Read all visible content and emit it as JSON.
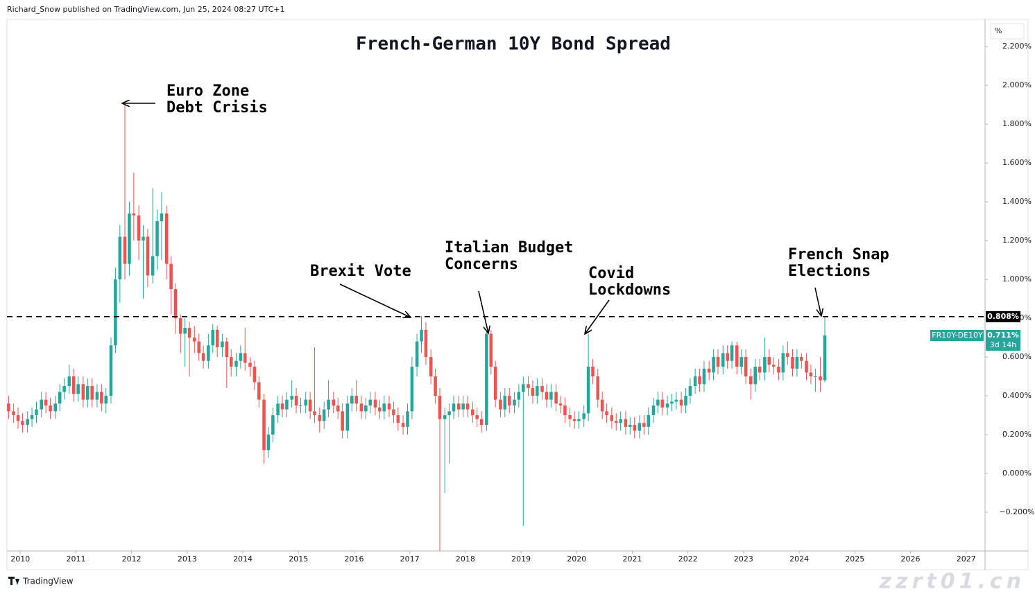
{
  "chart_data": {
    "type": "candlestick",
    "header": "Richard_Snow published on TradingView.com, Jun 25, 2024 08:27 UTC+1",
    "title": "French-German 10Y Bond Spread",
    "footer": "TradingView",
    "watermark": "zzrt01.cn",
    "unit": "%",
    "symbol": "FR10Y-DE10Y",
    "countdown": "3d 14h",
    "up_color": "#26a69a",
    "down_color": "#ef5350",
    "grid": false,
    "xlim": [
      2009.76,
      2027.34
    ],
    "xticks": [
      2010,
      2011,
      2012,
      2013,
      2014,
      2015,
      2016,
      2017,
      2018,
      2019,
      2020,
      2021,
      2022,
      2023,
      2024,
      2025,
      2026,
      2027
    ],
    "ylim": [
      -0.4,
      2.34
    ],
    "yticks": [
      {
        "value": -0.2,
        "label": "−0.200%"
      },
      {
        "value": 0,
        "label": "0.000%"
      },
      {
        "value": 0.2,
        "label": "0.200%"
      },
      {
        "value": 0.4,
        "label": "0.400%"
      },
      {
        "value": 0.6,
        "label": "0.600%"
      },
      {
        "value": 0.8,
        "label": "0.800%"
      },
      {
        "value": 1.0,
        "label": "1.000%"
      },
      {
        "value": 1.2,
        "label": "1.200%"
      },
      {
        "value": 1.4,
        "label": "1.400%"
      },
      {
        "value": 1.6,
        "label": "1.600%"
      },
      {
        "value": 1.8,
        "label": "1.800%"
      },
      {
        "value": 2.0,
        "label": "2.000%"
      },
      {
        "value": 2.2,
        "label": "2.200%"
      }
    ],
    "reference_line": {
      "value": 0.808,
      "label": "0.808%"
    },
    "last_price": {
      "value": 0.711,
      "label": "0.711%"
    },
    "annotations": [
      {
        "lines": [
          "Euro Zone",
          "Debt Crisis"
        ]
      },
      {
        "lines": [
          "Brexit Vote"
        ]
      },
      {
        "lines": [
          "Italian Budget",
          "Concerns"
        ]
      },
      {
        "lines": [
          "Covid",
          "Lockdowns"
        ]
      },
      {
        "lines": [
          "French Snap",
          "Elections"
        ]
      }
    ],
    "x": [
      2009.79,
      2009.88,
      2009.96,
      2010.04,
      2010.13,
      2010.21,
      2010.29,
      2010.38,
      2010.46,
      2010.54,
      2010.63,
      2010.71,
      2010.79,
      2010.88,
      2010.96,
      2011.04,
      2011.13,
      2011.21,
      2011.29,
      2011.38,
      2011.46,
      2011.54,
      2011.63,
      2011.71,
      2011.79,
      2011.88,
      2011.96,
      2012.04,
      2012.13,
      2012.21,
      2012.29,
      2012.38,
      2012.46,
      2012.54,
      2012.63,
      2012.71,
      2012.79,
      2012.88,
      2012.96,
      2013.04,
      2013.13,
      2013.21,
      2013.29,
      2013.38,
      2013.46,
      2013.54,
      2013.63,
      2013.71,
      2013.79,
      2013.88,
      2013.96,
      2014.04,
      2014.13,
      2014.21,
      2014.29,
      2014.38,
      2014.46,
      2014.54,
      2014.63,
      2014.71,
      2014.79,
      2014.88,
      2014.96,
      2015.04,
      2015.13,
      2015.21,
      2015.29,
      2015.38,
      2015.46,
      2015.54,
      2015.63,
      2015.71,
      2015.79,
      2015.88,
      2015.96,
      2016.04,
      2016.13,
      2016.21,
      2016.29,
      2016.38,
      2016.46,
      2016.54,
      2016.63,
      2016.71,
      2016.79,
      2016.88,
      2016.96,
      2017.04,
      2017.13,
      2017.21,
      2017.29,
      2017.38,
      2017.46,
      2017.54,
      2017.63,
      2017.71,
      2017.79,
      2017.88,
      2017.96,
      2018.04,
      2018.13,
      2018.21,
      2018.29,
      2018.38,
      2018.46,
      2018.54,
      2018.63,
      2018.71,
      2018.79,
      2018.88,
      2018.96,
      2019.04,
      2019.13,
      2019.21,
      2019.29,
      2019.38,
      2019.46,
      2019.54,
      2019.63,
      2019.71,
      2019.79,
      2019.88,
      2019.96,
      2020.04,
      2020.13,
      2020.21,
      2020.29,
      2020.38,
      2020.46,
      2020.54,
      2020.63,
      2020.71,
      2020.79,
      2020.88,
      2020.96,
      2021.04,
      2021.13,
      2021.21,
      2021.29,
      2021.38,
      2021.46,
      2021.54,
      2021.63,
      2021.71,
      2021.79,
      2021.88,
      2021.96,
      2022.04,
      2022.13,
      2022.21,
      2022.29,
      2022.38,
      2022.46,
      2022.54,
      2022.63,
      2022.71,
      2022.79,
      2022.88,
      2022.96,
      2023.04,
      2023.13,
      2023.21,
      2023.29,
      2023.38,
      2023.46,
      2023.54,
      2023.63,
      2023.71,
      2023.79,
      2023.88,
      2023.96,
      2024.04,
      2024.13,
      2024.21,
      2024.29,
      2024.38,
      2024.46
    ],
    "open": [
      0.36,
      0.32,
      0.3,
      0.27,
      0.25,
      0.28,
      0.3,
      0.33,
      0.38,
      0.35,
      0.32,
      0.36,
      0.42,
      0.45,
      0.5,
      0.41,
      0.46,
      0.38,
      0.45,
      0.38,
      0.42,
      0.36,
      0.4,
      0.66,
      1.0,
      1.22,
      1.08,
      1.34,
      1.33,
      1.2,
      1.22,
      1.02,
      1.12,
      1.3,
      1.34,
      1.08,
      0.95,
      0.8,
      0.72,
      0.75,
      0.7,
      0.68,
      0.62,
      0.58,
      0.66,
      0.74,
      0.65,
      0.68,
      0.6,
      0.55,
      0.58,
      0.62,
      0.57,
      0.55,
      0.47,
      0.38,
      0.12,
      0.2,
      0.3,
      0.36,
      0.33,
      0.38,
      0.4,
      0.35,
      0.35,
      0.38,
      0.32,
      0.3,
      0.27,
      0.33,
      0.38,
      0.35,
      0.32,
      0.22,
      0.36,
      0.4,
      0.36,
      0.32,
      0.35,
      0.38,
      0.34,
      0.32,
      0.36,
      0.33,
      0.3,
      0.26,
      0.24,
      0.32,
      0.55,
      0.68,
      0.74,
      0.6,
      0.5,
      0.4,
      0.28,
      0.3,
      0.32,
      0.36,
      0.33,
      0.36,
      0.33,
      0.3,
      0.28,
      0.25,
      0.72,
      0.55,
      0.38,
      0.33,
      0.4,
      0.35,
      0.38,
      0.42,
      0.46,
      0.44,
      0.4,
      0.45,
      0.42,
      0.38,
      0.42,
      0.36,
      0.35,
      0.3,
      0.28,
      0.27,
      0.28,
      0.31,
      0.55,
      0.5,
      0.38,
      0.32,
      0.3,
      0.27,
      0.26,
      0.28,
      0.24,
      0.25,
      0.22,
      0.26,
      0.24,
      0.3,
      0.35,
      0.38,
      0.34,
      0.36,
      0.37,
      0.38,
      0.35,
      0.4,
      0.45,
      0.5,
      0.46,
      0.54,
      0.52,
      0.6,
      0.55,
      0.62,
      0.58,
      0.66,
      0.55,
      0.6,
      0.5,
      0.46,
      0.55,
      0.52,
      0.6,
      0.56,
      0.55,
      0.52,
      0.62,
      0.6,
      0.54,
      0.6,
      0.58,
      0.52,
      0.5,
      0.5,
      0.48
    ],
    "high": [
      0.4,
      0.36,
      0.34,
      0.31,
      0.32,
      0.34,
      0.37,
      0.42,
      0.42,
      0.39,
      0.4,
      0.46,
      0.49,
      0.56,
      0.54,
      0.5,
      0.5,
      0.49,
      0.49,
      0.46,
      0.46,
      0.44,
      0.7,
      1.06,
      1.28,
      1.9,
      1.4,
      1.55,
      1.38,
      1.28,
      1.26,
      1.47,
      1.36,
      1.45,
      1.38,
      1.12,
      0.98,
      0.82,
      0.8,
      0.78,
      0.76,
      0.72,
      0.66,
      0.72,
      0.77,
      0.76,
      0.72,
      0.7,
      0.64,
      0.62,
      0.66,
      0.75,
      0.6,
      0.58,
      0.5,
      0.41,
      0.24,
      0.34,
      0.4,
      0.4,
      0.42,
      0.48,
      0.44,
      0.39,
      0.42,
      0.42,
      0.65,
      0.34,
      0.37,
      0.48,
      0.42,
      0.39,
      0.36,
      0.4,
      0.44,
      0.48,
      0.4,
      0.39,
      0.42,
      0.42,
      0.38,
      0.4,
      0.4,
      0.37,
      0.34,
      0.3,
      0.36,
      0.6,
      0.72,
      0.81,
      0.78,
      0.64,
      0.54,
      0.44,
      0.34,
      0.36,
      0.4,
      0.4,
      0.4,
      0.4,
      0.37,
      0.34,
      0.32,
      0.73,
      0.74,
      0.58,
      0.42,
      0.44,
      0.44,
      0.42,
      0.46,
      0.5,
      0.5,
      0.48,
      0.49,
      0.49,
      0.46,
      0.46,
      0.46,
      0.4,
      0.39,
      0.34,
      0.32,
      0.32,
      0.35,
      0.72,
      0.59,
      0.54,
      0.42,
      0.36,
      0.34,
      0.31,
      0.32,
      0.32,
      0.29,
      0.29,
      0.3,
      0.3,
      0.34,
      0.39,
      0.42,
      0.42,
      0.4,
      0.41,
      0.42,
      0.42,
      0.44,
      0.49,
      0.54,
      0.54,
      0.58,
      0.58,
      0.64,
      0.64,
      0.66,
      0.66,
      0.68,
      0.68,
      0.64,
      0.64,
      0.54,
      0.59,
      0.59,
      0.7,
      0.64,
      0.6,
      0.59,
      0.66,
      0.68,
      0.64,
      0.64,
      0.62,
      0.62,
      0.56,
      0.54,
      0.6,
      0.808
    ],
    "low": [
      0.28,
      0.26,
      0.23,
      0.21,
      0.21,
      0.24,
      0.26,
      0.29,
      0.31,
      0.28,
      0.28,
      0.32,
      0.38,
      0.41,
      0.37,
      0.37,
      0.34,
      0.34,
      0.34,
      0.34,
      0.32,
      0.31,
      0.36,
      0.62,
      0.88,
      1.0,
      1.02,
      1.2,
      1.1,
      0.9,
      0.96,
      0.98,
      1.05,
      1.1,
      1.0,
      0.82,
      0.72,
      0.62,
      0.55,
      0.5,
      0.62,
      0.58,
      0.54,
      0.54,
      0.62,
      0.6,
      0.6,
      0.44,
      0.5,
      0.5,
      0.54,
      0.53,
      0.5,
      0.43,
      0.34,
      0.05,
      0.08,
      0.16,
      0.26,
      0.29,
      0.29,
      0.34,
      0.31,
      0.31,
      0.31,
      0.28,
      0.26,
      0.21,
      0.23,
      0.29,
      0.31,
      0.28,
      0.18,
      0.18,
      0.32,
      0.32,
      0.28,
      0.28,
      0.31,
      0.3,
      0.28,
      0.28,
      0.29,
      0.26,
      0.22,
      0.2,
      0.2,
      0.28,
      0.5,
      0.62,
      0.56,
      0.46,
      0.36,
      -0.4,
      -0.1,
      0.05,
      0.28,
      0.29,
      0.29,
      0.29,
      0.26,
      0.24,
      0.21,
      0.22,
      0.51,
      0.34,
      0.29,
      0.29,
      0.31,
      0.31,
      0.34,
      -0.27,
      0.4,
      0.36,
      0.36,
      0.38,
      0.34,
      0.34,
      0.32,
      0.31,
      0.26,
      0.24,
      0.23,
      0.23,
      0.24,
      0.27,
      0.46,
      0.34,
      0.28,
      0.26,
      0.23,
      0.22,
      0.22,
      0.2,
      0.2,
      0.18,
      0.18,
      0.2,
      0.2,
      0.26,
      0.31,
      0.3,
      0.3,
      0.32,
      0.33,
      0.31,
      0.31,
      0.36,
      0.41,
      0.42,
      0.42,
      0.48,
      0.48,
      0.51,
      0.51,
      0.54,
      0.54,
      0.51,
      0.51,
      0.46,
      0.38,
      0.42,
      0.48,
      0.48,
      0.52,
      0.51,
      0.48,
      0.48,
      0.56,
      0.5,
      0.5,
      0.54,
      0.48,
      0.46,
      0.42,
      0.42,
      0.47
    ],
    "close": [
      0.32,
      0.3,
      0.27,
      0.25,
      0.28,
      0.3,
      0.33,
      0.38,
      0.35,
      0.32,
      0.36,
      0.42,
      0.45,
      0.5,
      0.41,
      0.46,
      0.38,
      0.45,
      0.38,
      0.42,
      0.36,
      0.4,
      0.66,
      1.0,
      1.22,
      1.08,
      1.34,
      1.33,
      1.2,
      1.22,
      1.02,
      1.12,
      1.3,
      1.34,
      1.08,
      0.95,
      0.8,
      0.72,
      0.75,
      0.7,
      0.68,
      0.62,
      0.58,
      0.66,
      0.74,
      0.65,
      0.68,
      0.6,
      0.55,
      0.58,
      0.62,
      0.57,
      0.55,
      0.47,
      0.38,
      0.12,
      0.2,
      0.3,
      0.36,
      0.33,
      0.38,
      0.4,
      0.35,
      0.35,
      0.38,
      0.32,
      0.3,
      0.27,
      0.33,
      0.38,
      0.35,
      0.32,
      0.22,
      0.36,
      0.4,
      0.36,
      0.32,
      0.35,
      0.38,
      0.34,
      0.32,
      0.36,
      0.33,
      0.3,
      0.26,
      0.24,
      0.32,
      0.55,
      0.68,
      0.74,
      0.6,
      0.5,
      0.4,
      0.28,
      0.3,
      0.32,
      0.36,
      0.33,
      0.36,
      0.33,
      0.3,
      0.28,
      0.25,
      0.72,
      0.55,
      0.38,
      0.33,
      0.4,
      0.35,
      0.38,
      0.42,
      0.46,
      0.44,
      0.4,
      0.45,
      0.42,
      0.38,
      0.42,
      0.36,
      0.35,
      0.3,
      0.28,
      0.27,
      0.28,
      0.31,
      0.55,
      0.5,
      0.38,
      0.32,
      0.3,
      0.27,
      0.26,
      0.28,
      0.24,
      0.25,
      0.22,
      0.26,
      0.24,
      0.3,
      0.35,
      0.38,
      0.34,
      0.36,
      0.37,
      0.38,
      0.35,
      0.4,
      0.45,
      0.5,
      0.46,
      0.54,
      0.52,
      0.6,
      0.55,
      0.62,
      0.58,
      0.66,
      0.55,
      0.6,
      0.5,
      0.46,
      0.55,
      0.52,
      0.6,
      0.56,
      0.55,
      0.52,
      0.62,
      0.6,
      0.54,
      0.6,
      0.58,
      0.52,
      0.5,
      0.5,
      0.48,
      0.711
    ]
  }
}
